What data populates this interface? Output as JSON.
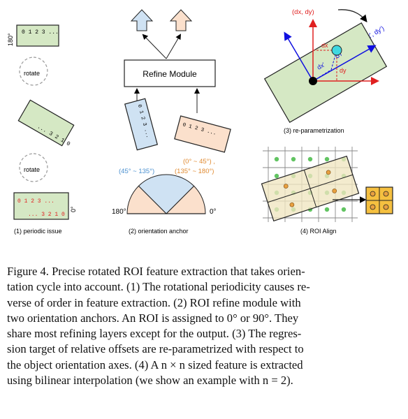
{
  "panel1": {
    "angle_top": "180°",
    "angle_bottom": "0°",
    "code_top": "0 1 2 3 ...",
    "code_mid": "... 3 2 1 0",
    "code_red_top": "0 1 2 3 ...",
    "code_red_bottom": "... 3 2 1 0",
    "rotate_1": "rotate",
    "rotate_2": "rotate",
    "caption": "(1) periodic issue"
  },
  "panel2": {
    "module_label": "Refine Module",
    "code_left": "0 1 2 3 ...",
    "code_right": "0 1 2 3 ...",
    "range_blue": "(45° ~ 135°)",
    "range_orange_1": "(0° ~ 45°) ,",
    "range_orange_2": "(135° ~ 180°)",
    "angle_left": "180°",
    "angle_right": "0°",
    "caption": "(2) orientation anchor"
  },
  "panel3": {
    "label_dxdy": "(dx, dy)",
    "label_dxdy_prime": "(dx', dy')",
    "label_dx": "dx",
    "label_dy": "dy",
    "label_dx_prime": "dx'",
    "label_dy_prime": "dy'",
    "caption": "(3) re-parametrization"
  },
  "panel4": {
    "caption": "(4) ROI Align"
  },
  "caption": {
    "lines": [
      "Figure 4. Precise rotated ROI feature extraction that takes orien-",
      "tation cycle into account. (1) The rotational periodicity causes re-",
      "verse of order in feature extraction. (2) ROI refine module with",
      "two orientation anchors. An ROI is assigned to 0° or 90°. They",
      "share most refining layers except for the output. (3) The regres-",
      "sion target of relative offsets are re-parametrized with respect to",
      "the object orientation axes. (4) A n × n sized feature is extracted",
      "using bilinear interpolation (we show an example with n = 2)."
    ]
  },
  "colors": {
    "green_fill": "#d5e8c4",
    "blue_fill": "#cfe2f3",
    "orange_fill": "#fbe0cc",
    "red": "#e02020",
    "blue": "#1010e0",
    "cyan": "#40d8e0",
    "dot_green": "#62c462",
    "dot_orange": "#e8a040",
    "grid_yellow": "#f5c040"
  }
}
